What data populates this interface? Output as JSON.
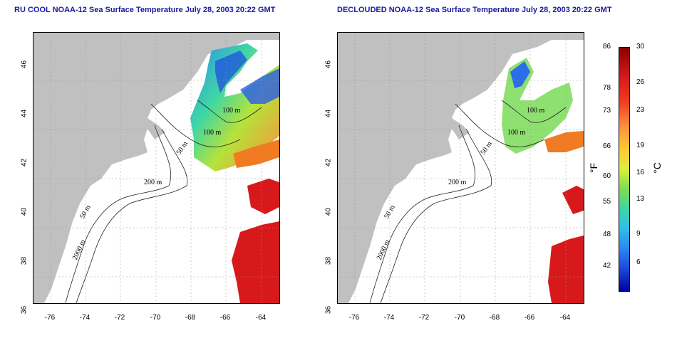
{
  "titles": {
    "left": "RU COOL NOAA-12 Sea Surface Temperature July 28, 2003 20:22 GMT",
    "right": "DECLOUDED NOAA-12 Sea Surface Temperature July 28, 2003 20:22 GMT"
  },
  "axes": {
    "lat_ticks": [
      "46",
      "44",
      "42",
      "40",
      "38",
      "36"
    ],
    "lon_ticks": [
      "-76",
      "-74",
      "-72",
      "-70",
      "-68",
      "-66",
      "-64"
    ]
  },
  "contours": {
    "left": [
      "100 m",
      "100 m",
      "50 m",
      "200 m",
      "50 m",
      "2000 m"
    ],
    "right": [
      "100 m",
      "100 m",
      "50 m",
      "200 m",
      "50 m",
      "2000 m"
    ]
  },
  "colorbar": {
    "fahrenheit_ticks": [
      "86",
      "78",
      "73",
      "66",
      "60",
      "55",
      "48",
      "42"
    ],
    "celsius_ticks": [
      "30",
      "26",
      "23",
      "19",
      "16",
      "13",
      "9",
      "6"
    ],
    "f_unit": "°F",
    "c_unit": "°C"
  },
  "colors": {
    "land": "#c0c0c0",
    "title": "#1a1aa0",
    "warm": "#d7191c",
    "cool": "#1f4fe0"
  }
}
